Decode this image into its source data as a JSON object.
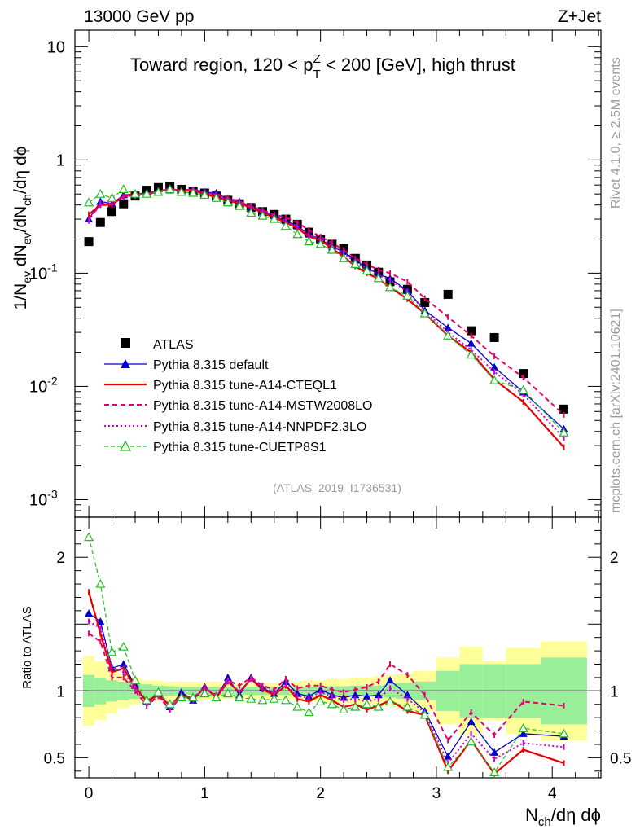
{
  "header": {
    "energy_label": "13000 GeV pp",
    "process_label": "Z+Jet",
    "region_title_pre": "Toward region, 120 < p",
    "region_title_sup": "Z",
    "region_title_sub": "T",
    "region_title_post": " < 200 [GeV], high thrust",
    "analysis_id": "(ATLAS_2019_I1736531)"
  },
  "side_labels": {
    "rivet": "Rivet 4.1.0, ≥ 2.5M events",
    "mcplots": "mcplots.cern.ch [arXiv:2401.10621]"
  },
  "axes": {
    "ylabel_main": "1/N_ev dN_ev/dN_ch/dη dϕ",
    "ylabel_main_parts": [
      "1/N",
      "ev",
      " dN",
      "ev",
      "/dN",
      "ch",
      "/dη dϕ"
    ],
    "ylabel_ratio": "Ratio to ATLAS",
    "xlabel": "N_ch/dη dϕ",
    "xlabel_parts": [
      "N",
      "ch",
      "/dη dϕ"
    ],
    "x_ticks": [
      "0",
      "1",
      "2",
      "3",
      "4"
    ],
    "main_y_ticks": [
      {
        "base": "10",
        "exp": "-3",
        "value": 0.001
      },
      {
        "base": "10",
        "exp": "-2",
        "value": 0.01
      },
      {
        "base": "10",
        "exp": "-1",
        "value": 0.1
      },
      {
        "base": "1",
        "exp": "",
        "value": 1
      },
      {
        "base": "10",
        "exp": "",
        "value": 10
      }
    ],
    "ratio_y_ticks": [
      "0.5",
      "1",
      "2"
    ],
    "ratio_y_tick_values": [
      0.5,
      1,
      2
    ]
  },
  "legend": [
    {
      "label": "ATLAS"
    },
    {
      "label": "Pythia 8.315 default"
    },
    {
      "label": "Pythia 8.315 tune-A14-CTEQL1"
    },
    {
      "label": "Pythia 8.315 tune-A14-MSTW2008LO"
    },
    {
      "label": "Pythia 8.315 tune-A14-NNPDF2.3LO"
    },
    {
      "label": "Pythia 8.315 tune-CUETP8S1"
    }
  ],
  "chart_data": {
    "type": "line",
    "title": "Toward region, 120 < pT(Z) < 200 [GeV], high thrust",
    "xlabel": "Nch/dη dϕ",
    "ylabel": "1/Nev dNev/dNch/dη dϕ",
    "ratio_ylabel": "Ratio to ATLAS",
    "xlim": [
      -0.12,
      4.42
    ],
    "ylim": [
      0.0007,
      14
    ],
    "yscale": "log",
    "ratio_ylim": [
      0.35,
      2.3
    ],
    "x": [
      0.0,
      0.1,
      0.2,
      0.3,
      0.4,
      0.5,
      0.6,
      0.7,
      0.8,
      0.9,
      1.0,
      1.1,
      1.2,
      1.3,
      1.4,
      1.5,
      1.6,
      1.7,
      1.8,
      1.9,
      2.0,
      2.1,
      2.2,
      2.3,
      2.4,
      2.5,
      2.6,
      2.75,
      2.9,
      3.1,
      3.3,
      3.5,
      3.75,
      4.1
    ],
    "colors": {
      "atlas": "#000000",
      "default": "#0000cc",
      "cteql1": "#e60000",
      "mstw": "#e6006a",
      "nnpdf": "#cc00cc",
      "cuetp": "#22bb22",
      "band_inner": "#99ee99",
      "band_outer": "#ffff99"
    },
    "series": [
      {
        "name": "ATLAS",
        "key": "atlas",
        "style": "square",
        "values": [
          0.19,
          0.28,
          0.35,
          0.41,
          0.48,
          0.54,
          0.57,
          0.58,
          0.55,
          0.53,
          0.51,
          0.48,
          0.44,
          0.41,
          0.38,
          0.35,
          0.33,
          0.3,
          0.27,
          0.23,
          0.2,
          0.18,
          0.165,
          0.135,
          0.118,
          0.102,
          0.084,
          0.072,
          0.055,
          0.065,
          0.031,
          0.027,
          0.013,
          0.0063
        ]
      },
      {
        "name": "Pythia 8.315 default",
        "key": "default",
        "style": "solid-triangle",
        "values": [
          0.3,
          0.43,
          0.41,
          0.49,
          0.5,
          0.51,
          0.53,
          0.54,
          0.53,
          0.54,
          0.52,
          0.51,
          0.45,
          0.43,
          0.38,
          0.35,
          0.32,
          0.29,
          0.26,
          0.22,
          0.2,
          0.17,
          0.155,
          0.13,
          0.112,
          0.098,
          0.09,
          0.07,
          0.047,
          0.033,
          0.024,
          0.0148,
          0.0089,
          0.0042
        ]
      },
      {
        "name": "Pythia 8.315 tune-A14-CTEQL1",
        "key": "cteql1",
        "style": "solid",
        "values": [
          0.33,
          0.4,
          0.4,
          0.48,
          0.5,
          0.5,
          0.52,
          0.56,
          0.53,
          0.54,
          0.5,
          0.47,
          0.44,
          0.41,
          0.38,
          0.34,
          0.31,
          0.28,
          0.25,
          0.21,
          0.195,
          0.165,
          0.14,
          0.115,
          0.1,
          0.089,
          0.075,
          0.059,
          0.044,
          0.028,
          0.02,
          0.0115,
          0.0073,
          0.0029
        ]
      },
      {
        "name": "Pythia 8.315 tune-A14-MSTW2008LO",
        "key": "mstw",
        "style": "dashed",
        "values": [
          0.3,
          0.4,
          0.41,
          0.47,
          0.49,
          0.5,
          0.53,
          0.55,
          0.54,
          0.55,
          0.51,
          0.5,
          0.46,
          0.43,
          0.39,
          0.36,
          0.33,
          0.31,
          0.28,
          0.24,
          0.21,
          0.185,
          0.16,
          0.135,
          0.12,
          0.107,
          0.1,
          0.084,
          0.06,
          0.041,
          0.028,
          0.0185,
          0.012,
          0.0056
        ]
      },
      {
        "name": "Pythia 8.315 tune-A14-NNPDF2.3LO",
        "key": "nnpdf",
        "style": "dotted",
        "values": [
          0.29,
          0.42,
          0.42,
          0.47,
          0.48,
          0.5,
          0.53,
          0.56,
          0.53,
          0.55,
          0.52,
          0.49,
          0.45,
          0.42,
          0.39,
          0.35,
          0.32,
          0.29,
          0.26,
          0.22,
          0.2,
          0.175,
          0.15,
          0.125,
          0.11,
          0.096,
          0.087,
          0.069,
          0.046,
          0.03,
          0.021,
          0.0135,
          0.0085,
          0.0035
        ]
      },
      {
        "name": "Pythia 8.315 tune-CUETP8S1",
        "key": "cuetp",
        "style": "dashed-open-triangle",
        "values": [
          0.42,
          0.5,
          0.46,
          0.55,
          0.5,
          0.5,
          0.52,
          0.55,
          0.52,
          0.51,
          0.49,
          0.46,
          0.42,
          0.39,
          0.34,
          0.32,
          0.3,
          0.26,
          0.22,
          0.19,
          0.18,
          0.16,
          0.135,
          0.12,
          0.105,
          0.09,
          0.075,
          0.063,
          0.044,
          0.028,
          0.019,
          0.0113,
          0.0093,
          0.0039
        ]
      }
    ],
    "ratio_series": [
      {
        "name": "Pythia 8.315 default",
        "key": "default",
        "values": [
          1.58,
          1.52,
          1.17,
          1.2,
          1.04,
          0.92,
          0.98,
          0.88,
          0.99,
          0.93,
          1.03,
          0.95,
          1.1,
          0.97,
          1.1,
          1.02,
          0.98,
          1.07,
          0.98,
          0.96,
          1.01,
          0.97,
          0.95,
          0.97,
          0.96,
          0.97,
          1.08,
          0.97,
          0.85,
          0.51,
          0.77,
          0.54,
          0.68,
          0.66
        ]
      },
      {
        "name": "Pythia 8.315 tune-A14-CTEQL1",
        "key": "cteql1",
        "values": [
          1.74,
          1.43,
          1.14,
          1.17,
          1.03,
          0.92,
          0.97,
          0.89,
          0.97,
          0.93,
          1.03,
          0.95,
          1.07,
          0.99,
          1.09,
          1.01,
          0.97,
          1.04,
          0.94,
          0.92,
          0.97,
          0.93,
          0.88,
          0.9,
          0.86,
          0.89,
          0.93,
          0.85,
          0.82,
          0.4,
          0.63,
          0.38,
          0.56,
          0.46
        ]
      },
      {
        "name": "Pythia 8.315 tune-A14-MSTW2008LO",
        "key": "mstw",
        "values": [
          1.43,
          1.37,
          1.1,
          1.1,
          1.0,
          0.89,
          0.96,
          0.86,
          0.96,
          0.95,
          1.02,
          0.97,
          1.08,
          1.04,
          1.1,
          1.04,
          1.01,
          1.09,
          1.02,
          1.04,
          1.04,
          1.01,
          0.99,
          1.01,
          1.03,
          1.07,
          1.2,
          1.12,
          0.97,
          0.63,
          0.84,
          0.67,
          0.92,
          0.89
        ]
      },
      {
        "name": "Pythia 8.315 tune-A14-NNPDF2.3LO",
        "key": "nnpdf",
        "values": [
          1.52,
          1.47,
          1.18,
          1.14,
          1.02,
          0.9,
          0.97,
          0.86,
          0.97,
          0.93,
          1.03,
          0.96,
          1.07,
          0.99,
          1.09,
          1.03,
          0.98,
          1.05,
          0.96,
          0.95,
          0.99,
          0.96,
          0.93,
          0.94,
          0.92,
          0.94,
          1.02,
          0.94,
          0.84,
          0.46,
          0.68,
          0.49,
          0.61,
          0.58
        ]
      },
      {
        "name": "Pythia 8.315 tune-CUETP8S1",
        "key": "cuetp",
        "values": [
          2.15,
          1.8,
          1.29,
          1.33,
          1.08,
          0.93,
          0.99,
          0.9,
          0.95,
          0.95,
          0.98,
          0.95,
          0.98,
          0.95,
          0.94,
          0.93,
          0.94,
          0.93,
          0.88,
          0.84,
          0.92,
          0.9,
          0.86,
          0.88,
          0.9,
          0.88,
          0.92,
          0.88,
          0.82,
          0.43,
          0.62,
          0.39,
          0.72,
          0.68
        ]
      }
    ],
    "uncertainty_bands": {
      "x_edges": [
        -0.05,
        0.05,
        0.15,
        0.25,
        0.35,
        0.45,
        0.55,
        0.65,
        0.75,
        0.85,
        0.95,
        1.05,
        1.15,
        1.25,
        1.35,
        1.45,
        1.55,
        1.65,
        1.75,
        1.85,
        1.95,
        2.05,
        2.15,
        2.25,
        2.35,
        2.45,
        2.55,
        2.65,
        2.8,
        3.0,
        3.2,
        3.4,
        3.6,
        3.9,
        4.3
      ],
      "inner_half_width": [
        0.12,
        0.1,
        0.08,
        0.07,
        0.06,
        0.05,
        0.04,
        0.035,
        0.03,
        0.03,
        0.03,
        0.03,
        0.03,
        0.03,
        0.03,
        0.03,
        0.03,
        0.03,
        0.03,
        0.03,
        0.03,
        0.035,
        0.035,
        0.04,
        0.04,
        0.04,
        0.05,
        0.06,
        0.07,
        0.15,
        0.2,
        0.2,
        0.2,
        0.25
      ],
      "outer_half_width": [
        0.26,
        0.22,
        0.17,
        0.13,
        0.1,
        0.08,
        0.075,
        0.07,
        0.07,
        0.07,
        0.07,
        0.07,
        0.06,
        0.06,
        0.06,
        0.06,
        0.06,
        0.06,
        0.07,
        0.08,
        0.08,
        0.09,
        0.09,
        0.1,
        0.1,
        0.11,
        0.12,
        0.13,
        0.15,
        0.25,
        0.33,
        0.22,
        0.32,
        0.37
      ]
    }
  }
}
